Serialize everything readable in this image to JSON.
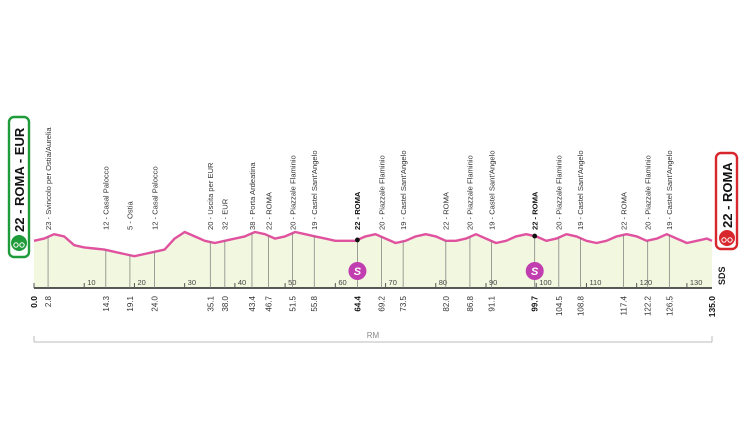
{
  "chart_data": {
    "type": "area",
    "title": "",
    "xlabel": "",
    "ylabel": "",
    "xlim": [
      0,
      135
    ],
    "start": {
      "label": "22 - ROMA - EUR",
      "km": 0.0
    },
    "finish": {
      "label": "22 - ROMA",
      "km": 135.0
    },
    "route_label": "RM",
    "logo_text": "SDS",
    "x_ticks": [
      0,
      10,
      20,
      30,
      40,
      50,
      60,
      70,
      80,
      90,
      100,
      110,
      120,
      130
    ],
    "x_tick_labels": [
      "0",
      "10",
      "20",
      "30",
      "40",
      "50",
      "60",
      "70",
      "80",
      "90",
      "100",
      "110",
      "120",
      "130"
    ],
    "waypoints": [
      {
        "km": 2.8,
        "km_label": "2.8",
        "label": "23 - Svincolo per Ostia/Aurelia",
        "bold": false
      },
      {
        "km": 14.3,
        "km_label": "14.3",
        "label": "12 - Casal Palocco",
        "bold": false
      },
      {
        "km": 19.1,
        "km_label": "19.1",
        "label": "5 - Ostia",
        "bold": false
      },
      {
        "km": 24.0,
        "km_label": "24.0",
        "label": "12 - Casal Palocco",
        "bold": false
      },
      {
        "km": 35.1,
        "km_label": "35.1",
        "label": "20 - Uscita per EUR",
        "bold": false
      },
      {
        "km": 38.0,
        "km_label": "38.0",
        "label": "32 - EUR",
        "bold": false
      },
      {
        "km": 43.4,
        "km_label": "43.4",
        "label": "38 - Porta Ardeatina",
        "bold": false
      },
      {
        "km": 46.7,
        "km_label": "46.7",
        "label": "22 - ROMA",
        "bold": false
      },
      {
        "km": 51.5,
        "km_label": "51.5",
        "label": "20 - Piazzale Flaminio",
        "bold": false
      },
      {
        "km": 55.8,
        "km_label": "55.8",
        "label": "19 - Castel Sant'Angelo",
        "bold": false
      },
      {
        "km": 64.4,
        "km_label": "64.4",
        "label": "22 - ROMA",
        "bold": true
      },
      {
        "km": 69.2,
        "km_label": "69.2",
        "label": "20 - Piazzale Flaminio",
        "bold": false
      },
      {
        "km": 73.5,
        "km_label": "73.5",
        "label": "19 - Castel Sant'Angelo",
        "bold": false
      },
      {
        "km": 82.0,
        "km_label": "82.0",
        "label": "22 - ROMA",
        "bold": false
      },
      {
        "km": 86.8,
        "km_label": "86.8",
        "label": "20 - Piazzale Flaminio",
        "bold": false
      },
      {
        "km": 91.1,
        "km_label": "91.1",
        "label": "19 - Castel Sant'Angelo",
        "bold": false
      },
      {
        "km": 99.7,
        "km_label": "99.7",
        "label": "22 - ROMA",
        "bold": true
      },
      {
        "km": 104.5,
        "km_label": "104.5",
        "label": "20 - Piazzale Flaminio",
        "bold": false
      },
      {
        "km": 108.8,
        "km_label": "108.8",
        "label": "19 - Castel Sant'Angelo",
        "bold": false
      },
      {
        "km": 117.4,
        "km_label": "117.4",
        "label": "22 - ROMA",
        "bold": false
      },
      {
        "km": 122.2,
        "km_label": "122.2",
        "label": "20 - Piazzale Flaminio",
        "bold": false
      },
      {
        "km": 126.5,
        "km_label": "126.5",
        "label": "19 - Castel Sant'Angelo",
        "bold": false
      }
    ],
    "intermediate_sprints": [
      {
        "km": 64.4,
        "label": "S"
      },
      {
        "km": 99.7,
        "label": "S"
      }
    ],
    "km_labels_extra": [
      {
        "km": 0.0,
        "km_label": "0.0"
      },
      {
        "km": 135.0,
        "km_label": "135.0"
      }
    ],
    "profile_km": [
      0,
      2,
      4,
      6,
      8,
      10,
      12,
      14,
      16,
      18,
      20,
      22,
      24,
      26,
      28,
      30,
      32,
      34,
      36,
      38,
      40,
      42,
      44,
      46,
      48,
      50,
      52,
      54,
      56,
      58,
      60,
      62,
      64,
      66,
      68,
      70,
      72,
      74,
      76,
      78,
      80,
      82,
      84,
      86,
      88,
      90,
      92,
      94,
      96,
      98,
      100,
      102,
      104,
      106,
      108,
      110,
      112,
      114,
      116,
      118,
      120,
      122,
      124,
      126,
      128,
      130,
      132,
      134,
      135
    ],
    "profile_alt": [
      22,
      24,
      28,
      26,
      18,
      16,
      15,
      14,
      12,
      10,
      8,
      10,
      12,
      14,
      24,
      30,
      26,
      22,
      20,
      22,
      24,
      26,
      30,
      28,
      24,
      26,
      30,
      28,
      26,
      24,
      22,
      22,
      22,
      26,
      28,
      24,
      20,
      22,
      26,
      28,
      26,
      22,
      22,
      24,
      28,
      24,
      20,
      22,
      26,
      28,
      26,
      22,
      24,
      28,
      26,
      22,
      20,
      22,
      26,
      28,
      26,
      22,
      24,
      28,
      24,
      20,
      22,
      24,
      22
    ],
    "colors": {
      "profile_line": "#e0529f",
      "profile_fill": "#f2f7df",
      "start_green": "#1f9b3a",
      "finish_red": "#d8262d",
      "sprint": "#c13eb0"
    }
  }
}
